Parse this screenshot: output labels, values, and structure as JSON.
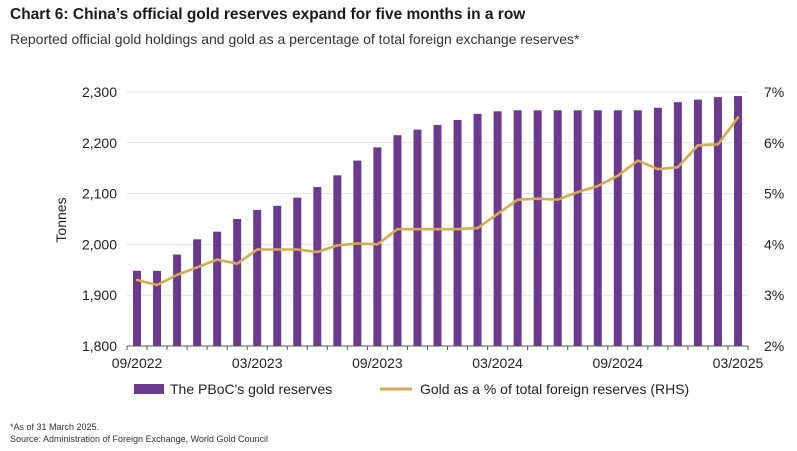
{
  "header": {
    "title": "Chart 6: China’s official gold reserves expand for five months in a row",
    "subtitle": "Reported official gold holdings and gold as a percentage of total foreign exchange reserves*"
  },
  "footer": {
    "note": "*As of 31 March 2025.",
    "source": "Source: Administration of Foreign Exchange, World Gold Council"
  },
  "colors": {
    "bar": "#6b3a8c",
    "line": "#d4aa55",
    "grid": "#e2e2e2",
    "axis": "#555555"
  },
  "chart_data": {
    "type": "bar",
    "ylabel": "Tonnes",
    "ylim": [
      1800,
      2300
    ],
    "yticks": [
      "1,800",
      "1,900",
      "2,000",
      "2,100",
      "2,200",
      "2,300"
    ],
    "y2lim": [
      2,
      7
    ],
    "y2ticks": [
      "2%",
      "3%",
      "4%",
      "5%",
      "6%",
      "7%"
    ],
    "xtick_labels": [
      "09/2022",
      "03/2023",
      "09/2023",
      "03/2024",
      "09/2024",
      "03/2025"
    ],
    "xtick_index": [
      0,
      6,
      12,
      18,
      24,
      30
    ],
    "categories": [
      "09/2022",
      "10/2022",
      "11/2022",
      "12/2022",
      "01/2023",
      "02/2023",
      "03/2023",
      "04/2023",
      "05/2023",
      "06/2023",
      "07/2023",
      "08/2023",
      "09/2023",
      "10/2023",
      "11/2023",
      "12/2023",
      "01/2024",
      "02/2024",
      "03/2024",
      "04/2024",
      "05/2024",
      "06/2024",
      "07/2024",
      "08/2024",
      "09/2024",
      "10/2024",
      "11/2024",
      "12/2024",
      "01/2025",
      "02/2025",
      "03/2025"
    ],
    "grid": true,
    "legend_position": "bottom",
    "series": [
      {
        "name": "The PBoC's gold reserves",
        "kind": "bar",
        "axis": "left",
        "values": [
          1948,
          1948,
          1980,
          2010,
          2025,
          2050,
          2068,
          2076,
          2092,
          2113,
          2136,
          2165,
          2191,
          2215,
          2226,
          2235,
          2245,
          2257,
          2262,
          2264,
          2264,
          2264,
          2264,
          2264,
          2264,
          2264,
          2269,
          2280,
          2285,
          2290,
          2292
        ]
      },
      {
        "name": "Gold as a % of total foreign reserves (RHS)",
        "kind": "line",
        "axis": "right",
        "values": [
          3.3,
          3.2,
          3.4,
          3.55,
          3.7,
          3.62,
          3.9,
          3.9,
          3.9,
          3.85,
          3.98,
          4.02,
          4.0,
          4.3,
          4.3,
          4.3,
          4.3,
          4.32,
          4.6,
          4.88,
          4.9,
          4.88,
          5.03,
          5.15,
          5.35,
          5.65,
          5.48,
          5.52,
          5.95,
          5.97,
          6.5
        ]
      }
    ]
  }
}
